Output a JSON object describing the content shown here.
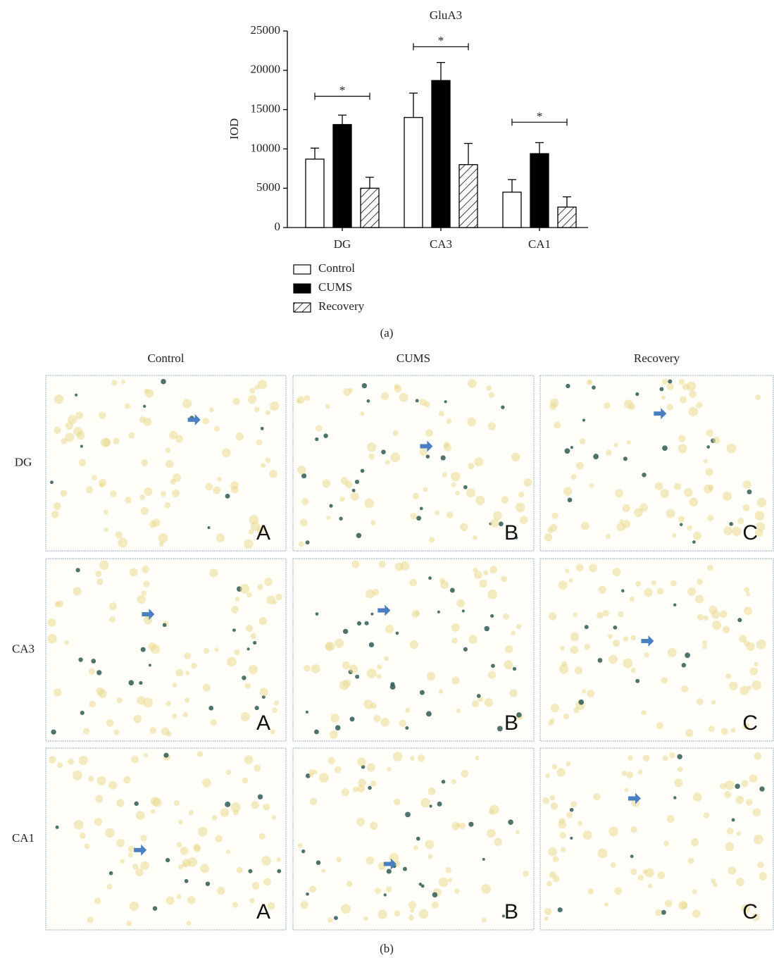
{
  "chart_data": {
    "type": "bar",
    "title": "GluA3",
    "y_label": "IOD",
    "categories": [
      "DG",
      "CA3",
      "CA1"
    ],
    "series": [
      {
        "name": "Control",
        "color": "#ffffff",
        "values": [
          8700,
          14000,
          4500
        ],
        "errors": [
          1400,
          3100,
          1600
        ]
      },
      {
        "name": "CUMS",
        "color": "#000000",
        "values": [
          13100,
          18700,
          9400
        ],
        "errors": [
          1200,
          2300,
          1400
        ]
      },
      {
        "name": "Recovery",
        "color": "#ffffff",
        "hatch": true,
        "values": [
          5000,
          8000,
          2600
        ],
        "errors": [
          1400,
          2700,
          1300
        ]
      }
    ],
    "ylim": [
      0,
      25000
    ],
    "yticks": [
      0,
      5000,
      10000,
      15000,
      20000,
      25000
    ],
    "brackets": [
      {
        "category": "DG",
        "y": 16700,
        "text": "*"
      },
      {
        "category": "CA3",
        "y": 23000,
        "text": "*"
      },
      {
        "category": "CA1",
        "y": 13400,
        "text": "*"
      }
    ],
    "legend": "bottom-left",
    "caption": "(a)"
  },
  "micrographs": {
    "columns": [
      "Control",
      "CUMS",
      "Recovery"
    ],
    "rows": [
      "DG",
      "CA3",
      "CA1"
    ],
    "letters": [
      [
        "A",
        "B",
        "C"
      ],
      [
        "A",
        "B",
        "C"
      ],
      [
        "A",
        "B",
        "C"
      ]
    ],
    "caption": "(b)"
  }
}
